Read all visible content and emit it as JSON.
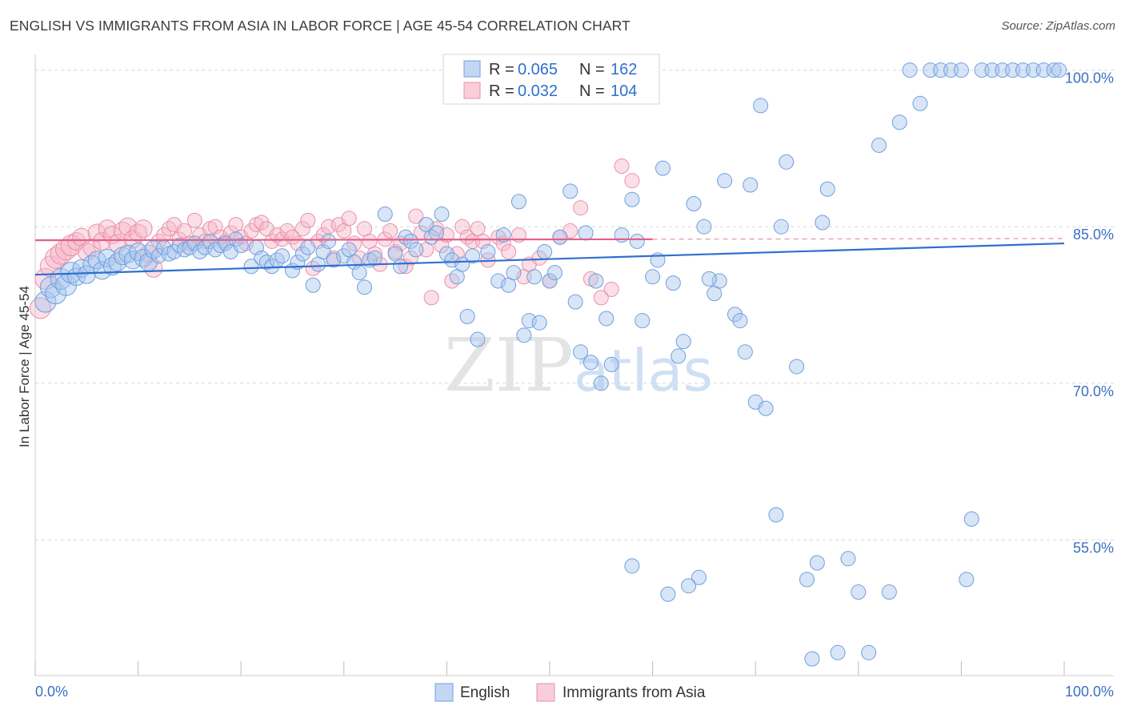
{
  "title": "ENGLISH VS IMMIGRANTS FROM ASIA IN LABOR FORCE | AGE 45-54 CORRELATION CHART",
  "source": "Source: ZipAtlas.com",
  "watermark": {
    "zip": "ZIP",
    "atlas": "atlas"
  },
  "colors": {
    "english_fill": "#a9c6ee",
    "english_stroke": "#6f9fdc",
    "english_line": "#2f6fd0",
    "asia_fill": "#f6b8c9",
    "asia_stroke": "#e890ab",
    "asia_line": "#e2608a",
    "grid": "#d8d8d8",
    "tick_label": "#3a6fc4"
  },
  "stats_legend": {
    "rows": [
      {
        "r_label": "R = ",
        "r_value": "0.065",
        "n_label": "N = ",
        "n_value": "162"
      },
      {
        "r_label": "R = ",
        "r_value": "0.032",
        "n_label": "N = ",
        "n_value": "104"
      }
    ]
  },
  "chart_data": {
    "type": "scatter",
    "title": "ENGLISH VS IMMIGRANTS FROM ASIA IN LABOR FORCE | AGE 45-54 CORRELATION CHART",
    "xlabel": "",
    "ylabel": "In Labor Force | Age 45-54",
    "xlim": [
      0,
      100
    ],
    "ylim": [
      42,
      101.5
    ],
    "x_tick_labels": [
      "0.0%",
      "100.0%"
    ],
    "y_ticks": [
      55,
      70,
      85,
      100
    ],
    "y_tick_labels": [
      "55.0%",
      "70.0%",
      "85.0%",
      "100.0%"
    ],
    "grid": "horizontal dashed",
    "legend": "bottom-center",
    "series": [
      {
        "name": "English",
        "r": 0.065,
        "n": 162,
        "trend": {
          "x": [
            0,
            100
          ],
          "y": [
            80.4,
            83.4
          ]
        },
        "points": [
          [
            1,
            77.8
          ],
          [
            1.5,
            79.2
          ],
          [
            2,
            78.6
          ],
          [
            2.5,
            80.0
          ],
          [
            3,
            79.4
          ],
          [
            3.5,
            80.6
          ],
          [
            4,
            80.2
          ],
          [
            4.5,
            81.0
          ],
          [
            5,
            80.4
          ],
          [
            5.5,
            81.4
          ],
          [
            6,
            81.8
          ],
          [
            6.5,
            80.8
          ],
          [
            7,
            82.0
          ],
          [
            7.5,
            81.2
          ],
          [
            8,
            81.6
          ],
          [
            8.5,
            82.2
          ],
          [
            9,
            82.4
          ],
          [
            9.5,
            81.8
          ],
          [
            10,
            82.6
          ],
          [
            10.5,
            82.0
          ],
          [
            11,
            81.6
          ],
          [
            11.5,
            82.8
          ],
          [
            12,
            82.2
          ],
          [
            12.5,
            83.0
          ],
          [
            13,
            82.4
          ],
          [
            13.5,
            82.6
          ],
          [
            14,
            83.2
          ],
          [
            14.5,
            82.8
          ],
          [
            15,
            83.0
          ],
          [
            15.5,
            83.4
          ],
          [
            16,
            82.6
          ],
          [
            16.5,
            83.0
          ],
          [
            17,
            83.6
          ],
          [
            17.5,
            82.8
          ],
          [
            18,
            83.2
          ],
          [
            18.5,
            83.4
          ],
          [
            19,
            82.6
          ],
          [
            19.5,
            83.8
          ],
          [
            20,
            83.2
          ],
          [
            21,
            81.2
          ],
          [
            21.5,
            83.0
          ],
          [
            22,
            82.0
          ],
          [
            22.5,
            81.6
          ],
          [
            23,
            81.2
          ],
          [
            23.5,
            81.8
          ],
          [
            24,
            82.2
          ],
          [
            25,
            80.8
          ],
          [
            25.5,
            81.6
          ],
          [
            26,
            82.4
          ],
          [
            26.5,
            83.0
          ],
          [
            27,
            79.4
          ],
          [
            27.5,
            81.4
          ],
          [
            28,
            82.6
          ],
          [
            28.5,
            83.6
          ],
          [
            29,
            81.8
          ],
          [
            30,
            82.2
          ],
          [
            30.5,
            82.8
          ],
          [
            31,
            81.6
          ],
          [
            31.5,
            80.6
          ],
          [
            32,
            79.2
          ],
          [
            32.5,
            81.8
          ],
          [
            33,
            82.0
          ],
          [
            34,
            86.2
          ],
          [
            35,
            82.4
          ],
          [
            35.5,
            81.2
          ],
          [
            36,
            84.0
          ],
          [
            36.5,
            83.6
          ],
          [
            37,
            82.8
          ],
          [
            38,
            85.2
          ],
          [
            38.5,
            84.0
          ],
          [
            39,
            84.4
          ],
          [
            39.5,
            86.2
          ],
          [
            40,
            82.4
          ],
          [
            40.5,
            81.8
          ],
          [
            41,
            80.2
          ],
          [
            41.5,
            81.4
          ],
          [
            42,
            76.4
          ],
          [
            42.5,
            82.2
          ],
          [
            43,
            74.2
          ],
          [
            44,
            82.6
          ],
          [
            45,
            79.8
          ],
          [
            45.5,
            84.2
          ],
          [
            46,
            79.4
          ],
          [
            46.5,
            80.6
          ],
          [
            47,
            87.4
          ],
          [
            47.5,
            74.6
          ],
          [
            48,
            76.0
          ],
          [
            48.5,
            80.2
          ],
          [
            49,
            75.8
          ],
          [
            49.5,
            82.6
          ],
          [
            50,
            79.8
          ],
          [
            50.5,
            80.6
          ],
          [
            51,
            84.0
          ],
          [
            52,
            88.4
          ],
          [
            52.5,
            77.8
          ],
          [
            53,
            73.0
          ],
          [
            53.5,
            84.4
          ],
          [
            54,
            72.0
          ],
          [
            54.5,
            79.8
          ],
          [
            55,
            70.0
          ],
          [
            55.5,
            76.2
          ],
          [
            56,
            71.8
          ],
          [
            57,
            84.2
          ],
          [
            58,
            87.6
          ],
          [
            58.5,
            83.6
          ],
          [
            59,
            76.0
          ],
          [
            60,
            80.2
          ],
          [
            60.5,
            81.8
          ],
          [
            61,
            90.6
          ],
          [
            62,
            79.6
          ],
          [
            62.5,
            72.6
          ],
          [
            63,
            74.0
          ],
          [
            64,
            87.2
          ],
          [
            65,
            85.0
          ],
          [
            66,
            78.6
          ],
          [
            66.5,
            79.8
          ],
          [
            67,
            89.4
          ],
          [
            68,
            76.6
          ],
          [
            69,
            73.0
          ],
          [
            70,
            68.2
          ],
          [
            71,
            67.6
          ],
          [
            72,
            57.4
          ],
          [
            73,
            91.2
          ],
          [
            74,
            71.6
          ],
          [
            75,
            51.2
          ],
          [
            76,
            52.8
          ],
          [
            77,
            88.6
          ],
          [
            78,
            44.2
          ],
          [
            79,
            53.2
          ],
          [
            80,
            50.0
          ],
          [
            81,
            44.2
          ],
          [
            82,
            92.8
          ],
          [
            83,
            50.0
          ],
          [
            84,
            95.0
          ],
          [
            85,
            100.0
          ],
          [
            86,
            96.8
          ],
          [
            87,
            100.0
          ],
          [
            88,
            100.0
          ],
          [
            89,
            100.0
          ],
          [
            90,
            100.0
          ],
          [
            90.5,
            51.2
          ],
          [
            91,
            57.0
          ],
          [
            92,
            100.0
          ],
          [
            93,
            100.0
          ],
          [
            94,
            100.0
          ],
          [
            95,
            100.0
          ],
          [
            96,
            100.0
          ],
          [
            97,
            100.0
          ],
          [
            98,
            100.0
          ],
          [
            99,
            100.0
          ],
          [
            99.5,
            100.0
          ],
          [
            68.5,
            76.0
          ],
          [
            70.5,
            96.6
          ],
          [
            69.5,
            89.0
          ],
          [
            72.5,
            85.0
          ],
          [
            76.5,
            85.4
          ],
          [
            65.5,
            80.0
          ],
          [
            64.5,
            51.4
          ],
          [
            63.5,
            50.6
          ],
          [
            58,
            52.5
          ],
          [
            61.5,
            49.8
          ],
          [
            75.5,
            43.6
          ]
        ]
      },
      {
        "name": "Immigrants from Asia",
        "r": 0.032,
        "n": 104,
        "trend": {
          "x": [
            0,
            60
          ],
          "y": [
            83.7,
            83.8
          ]
        },
        "points": [
          [
            0.5,
            77.2
          ],
          [
            1,
            80.0
          ],
          [
            1.5,
            81.2
          ],
          [
            2,
            82.0
          ],
          [
            2.5,
            82.4
          ],
          [
            3,
            82.8
          ],
          [
            3.5,
            83.2
          ],
          [
            4,
            83.6
          ],
          [
            4.5,
            84.0
          ],
          [
            5,
            82.6
          ],
          [
            5.5,
            83.0
          ],
          [
            6,
            84.4
          ],
          [
            6.5,
            83.6
          ],
          [
            7,
            84.8
          ],
          [
            7.5,
            84.2
          ],
          [
            8,
            83.4
          ],
          [
            8.5,
            84.6
          ],
          [
            9,
            85.0
          ],
          [
            9.5,
            83.8
          ],
          [
            10,
            84.4
          ],
          [
            10.5,
            84.8
          ],
          [
            11,
            82.4
          ],
          [
            11.5,
            81.0
          ],
          [
            12,
            83.6
          ],
          [
            12.5,
            84.2
          ],
          [
            13,
            84.8
          ],
          [
            13.5,
            85.2
          ],
          [
            14,
            83.8
          ],
          [
            14.5,
            84.6
          ],
          [
            15,
            83.4
          ],
          [
            15.5,
            85.6
          ],
          [
            16,
            84.2
          ],
          [
            16.5,
            83.6
          ],
          [
            17,
            84.8
          ],
          [
            17.5,
            85.0
          ],
          [
            18,
            84.0
          ],
          [
            18.5,
            83.6
          ],
          [
            19,
            84.4
          ],
          [
            19.5,
            85.2
          ],
          [
            20,
            84.0
          ],
          [
            20.5,
            83.4
          ],
          [
            21,
            84.6
          ],
          [
            21.5,
            85.2
          ],
          [
            22,
            85.4
          ],
          [
            22.5,
            84.8
          ],
          [
            23,
            83.6
          ],
          [
            23.5,
            84.2
          ],
          [
            24,
            83.8
          ],
          [
            24.5,
            84.6
          ],
          [
            25,
            84.0
          ],
          [
            25.5,
            83.4
          ],
          [
            26,
            84.8
          ],
          [
            26.5,
            85.6
          ],
          [
            27,
            81.0
          ],
          [
            27.5,
            83.6
          ],
          [
            28,
            84.2
          ],
          [
            28.5,
            85.0
          ],
          [
            29,
            82.0
          ],
          [
            29.5,
            85.2
          ],
          [
            30,
            84.6
          ],
          [
            30.5,
            85.8
          ],
          [
            31,
            83.4
          ],
          [
            31.5,
            82.0
          ],
          [
            32,
            84.8
          ],
          [
            32.5,
            83.6
          ],
          [
            33,
            82.4
          ],
          [
            33.5,
            81.4
          ],
          [
            34,
            83.8
          ],
          [
            34.5,
            84.6
          ],
          [
            35,
            82.6
          ],
          [
            35.5,
            83.4
          ],
          [
            36,
            81.2
          ],
          [
            36.5,
            82.0
          ],
          [
            37,
            86.0
          ],
          [
            37.5,
            84.4
          ],
          [
            38,
            82.8
          ],
          [
            38.5,
            78.2
          ],
          [
            39,
            84.8
          ],
          [
            39.5,
            83.2
          ],
          [
            40,
            84.2
          ],
          [
            40.5,
            79.8
          ],
          [
            41,
            82.4
          ],
          [
            41.5,
            85.0
          ],
          [
            42,
            84.0
          ],
          [
            42.5,
            83.6
          ],
          [
            43,
            84.8
          ],
          [
            43.5,
            83.6
          ],
          [
            44,
            81.8
          ],
          [
            45,
            84.0
          ],
          [
            45.5,
            83.4
          ],
          [
            46,
            82.6
          ],
          [
            47,
            84.2
          ],
          [
            47.5,
            80.2
          ],
          [
            48,
            81.4
          ],
          [
            49,
            82.0
          ],
          [
            50,
            79.8
          ],
          [
            51,
            84.0
          ],
          [
            52,
            84.6
          ],
          [
            53,
            86.8
          ],
          [
            54,
            80.0
          ],
          [
            55,
            78.2
          ],
          [
            56,
            79.0
          ],
          [
            57,
            90.8
          ],
          [
            58,
            89.4
          ]
        ]
      }
    ]
  }
}
